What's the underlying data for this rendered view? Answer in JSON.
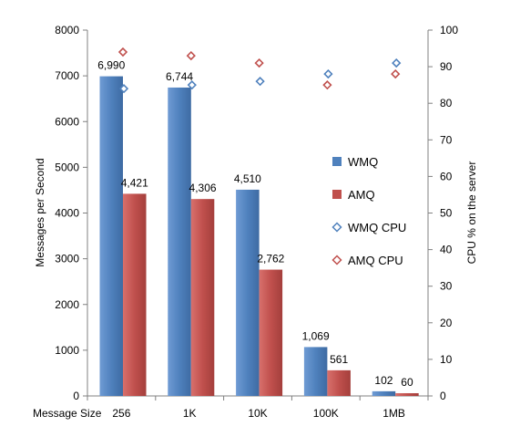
{
  "chart_data": {
    "type": "bar",
    "title": "",
    "categories_title": "Message Size",
    "categories": [
      "256",
      "1K",
      "10K",
      "100K",
      "1MB"
    ],
    "y_left": {
      "label": "Messages per Second",
      "ylim": [
        0,
        8000
      ],
      "ticks": [
        "0",
        "1000",
        "2000",
        "3000",
        "4000",
        "5000",
        "6000",
        "7000",
        "8000"
      ]
    },
    "y_right": {
      "label": "CPU % on the server",
      "ylim": [
        0,
        100
      ],
      "ticks": [
        "0",
        "10",
        "20",
        "30",
        "40",
        "50",
        "60",
        "70",
        "80",
        "90",
        "100"
      ]
    },
    "series": [
      {
        "name": "WMQ",
        "kind": "bar",
        "axis": "left",
        "color": "#4f81bd",
        "values": [
          6990,
          6744,
          4510,
          1069,
          102
        ],
        "labels": [
          "6,990",
          "6,744",
          "4,510",
          "1,069",
          "102"
        ]
      },
      {
        "name": "AMQ",
        "kind": "bar",
        "axis": "left",
        "color": "#c0504d",
        "values": [
          4421,
          4306,
          2762,
          561,
          60
        ],
        "labels": [
          "4,421",
          "4,306",
          "2,762",
          "561",
          "60"
        ]
      },
      {
        "name": "WMQ CPU",
        "kind": "marker",
        "axis": "right",
        "color": "#4f81bd",
        "values": [
          84,
          85,
          86,
          88,
          91
        ]
      },
      {
        "name": "AMQ CPU",
        "kind": "marker",
        "axis": "right",
        "color": "#c0504d",
        "values": [
          94,
          93,
          91,
          85,
          88
        ]
      }
    ],
    "legend_position": "right"
  }
}
